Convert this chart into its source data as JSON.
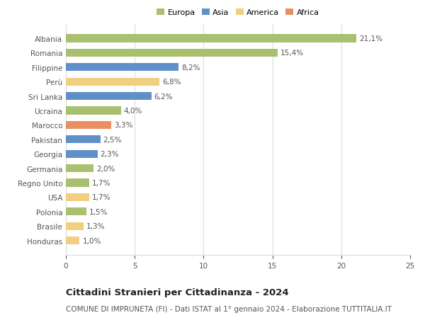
{
  "categories": [
    "Honduras",
    "Brasile",
    "Polonia",
    "USA",
    "Regno Unito",
    "Germania",
    "Georgia",
    "Pakistan",
    "Marocco",
    "Ucraina",
    "Sri Lanka",
    "Perù",
    "Filippine",
    "Romania",
    "Albania"
  ],
  "values": [
    1.0,
    1.3,
    1.5,
    1.7,
    1.7,
    2.0,
    2.3,
    2.5,
    3.3,
    4.0,
    6.2,
    6.8,
    8.2,
    15.4,
    21.1
  ],
  "labels": [
    "1,0%",
    "1,3%",
    "1,5%",
    "1,7%",
    "1,7%",
    "2,0%",
    "2,3%",
    "2,5%",
    "3,3%",
    "4,0%",
    "6,2%",
    "6,8%",
    "8,2%",
    "15,4%",
    "21,1%"
  ],
  "colors": [
    "#f0d080",
    "#f0d080",
    "#a8c070",
    "#f0d080",
    "#a8c070",
    "#a8c070",
    "#6090c8",
    "#6090c8",
    "#e89060",
    "#a8c070",
    "#6090c8",
    "#f0d080",
    "#6090c8",
    "#a8c070",
    "#a8c070"
  ],
  "legend": [
    {
      "label": "Europa",
      "color": "#a8c070"
    },
    {
      "label": "Asia",
      "color": "#6090c8"
    },
    {
      "label": "America",
      "color": "#f0d080"
    },
    {
      "label": "Africa",
      "color": "#e89060"
    }
  ],
  "xlim": [
    0,
    25
  ],
  "xticks": [
    0,
    5,
    10,
    15,
    20,
    25
  ],
  "title": "Cittadini Stranieri per Cittadinanza - 2024",
  "subtitle": "COMUNE DI IMPRUNETA (FI) - Dati ISTAT al 1° gennaio 2024 - Elaborazione TUTTITALIA.IT",
  "bg_color": "#ffffff",
  "grid_color": "#dddddd",
  "bar_height": 0.55,
  "label_fontsize": 7.5,
  "ytick_fontsize": 7.5,
  "xtick_fontsize": 7.5,
  "title_fontsize": 9.5,
  "subtitle_fontsize": 7.5,
  "legend_fontsize": 8.0
}
